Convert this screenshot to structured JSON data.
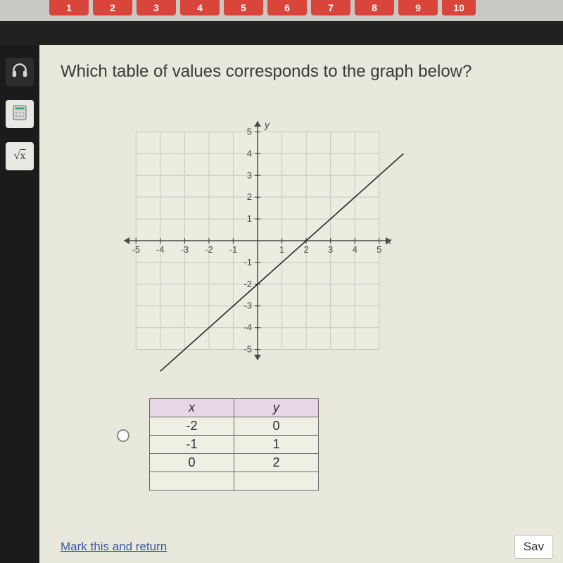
{
  "topbar": {
    "tabs": [
      "1",
      "2",
      "3",
      "4",
      "5",
      "6",
      "7",
      "8",
      "9",
      "10"
    ]
  },
  "sidebar": {
    "tools": [
      {
        "name": "audio-icon"
      },
      {
        "name": "calculator-icon"
      },
      {
        "name": "sqrt-icon",
        "label": "√x"
      }
    ]
  },
  "question": {
    "prompt": "Which table of values corresponds to the graph below?"
  },
  "chart": {
    "type": "line",
    "xlim": [
      -5.5,
      5.5
    ],
    "ylim": [
      -5.5,
      5.5
    ],
    "xtick_step": 1,
    "ytick_step": 1,
    "xlabel": "x",
    "ylabel": "y",
    "grid_color": "#c9c9bf",
    "axis_color": "#4a4a44",
    "line_color": "#2b2b26",
    "line_width": 1.6,
    "background_color": "#ecece1",
    "tick_fontsize": 13,
    "line_points": [
      [
        -4,
        -6
      ],
      [
        6,
        4
      ]
    ],
    "y_intercept": -2,
    "slope": 1
  },
  "answer_table": {
    "columns": [
      "x",
      "y"
    ],
    "rows": [
      [
        "-2",
        "0"
      ],
      [
        "-1",
        "1"
      ],
      [
        "0",
        "2"
      ]
    ],
    "header_bg": "#e7d6e4",
    "cell_bg": "#efefe4",
    "border_color": "#6b6b66"
  },
  "footer": {
    "mark_return": "Mark this and return",
    "save_label": "Sav"
  }
}
